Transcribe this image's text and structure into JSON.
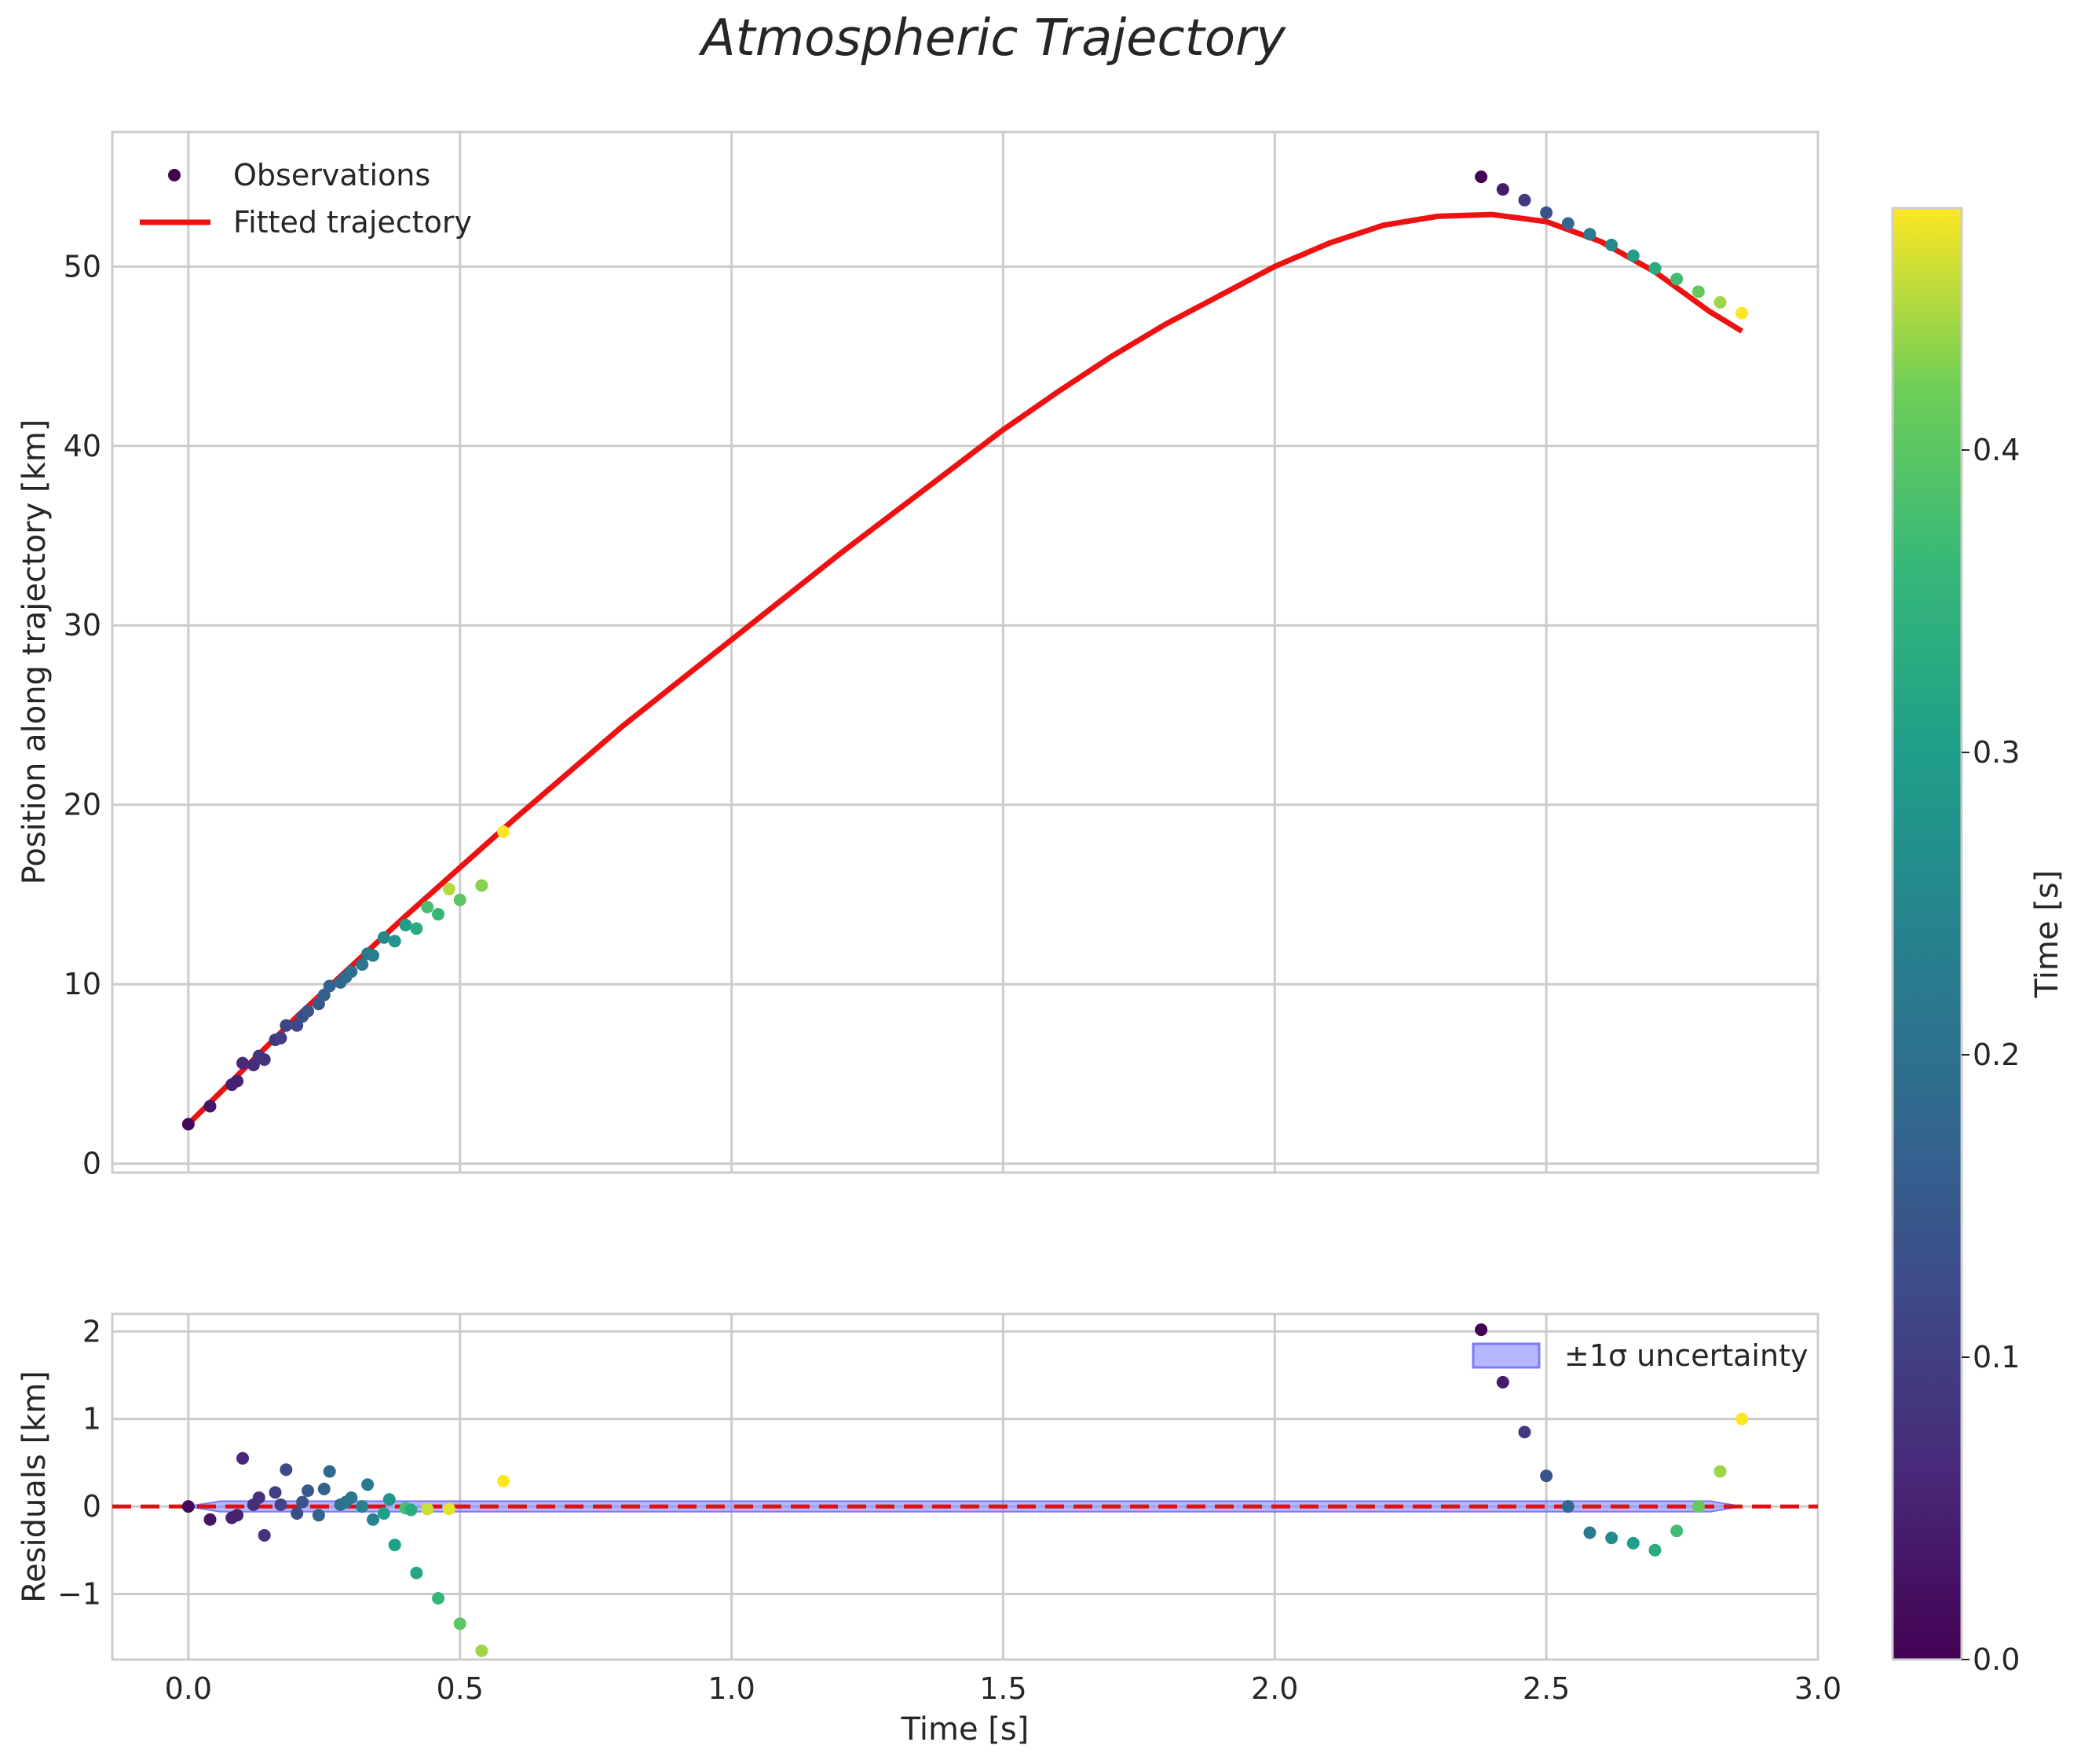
{
  "chart_data": {
    "type": "scatter",
    "title": "Atmospheric Trajectory",
    "top_panel": {
      "ylabel": "Position along trajectory [km]",
      "xlim": [
        -0.14,
        3.0
      ],
      "ylim": [
        -0.5,
        57.5
      ],
      "xticks": [
        0.0,
        0.5,
        1.0,
        1.5,
        2.0,
        2.5,
        3.0
      ],
      "yticks": [
        0,
        10,
        20,
        30,
        40,
        50
      ],
      "grid": true,
      "legend_position": "top-left",
      "legend": [
        "Observations",
        "Fitted trajectory"
      ],
      "fit_color": "#ee1111",
      "fit_curve": {
        "x": [
          0.0,
          0.1,
          0.2,
          0.3,
          0.4,
          0.5,
          0.6,
          0.7,
          0.8,
          0.9,
          1.0,
          1.1,
          1.2,
          1.3,
          1.4,
          1.5,
          1.6,
          1.7,
          1.8,
          1.9,
          2.0,
          2.1,
          2.2,
          2.3,
          2.4,
          2.5,
          2.6,
          2.7,
          2.8,
          2.86
        ],
        "y": [
          2.2,
          5.2,
          8.2,
          11.0,
          13.8,
          16.5,
          19.2,
          21.8,
          24.4,
          26.8,
          29.2,
          31.6,
          34.0,
          36.3,
          38.6,
          40.9,
          43.0,
          45.0,
          46.8,
          48.4,
          50.0,
          51.3,
          52.3,
          52.8,
          52.9,
          52.5,
          51.4,
          49.7,
          47.5,
          46.4
        ]
      },
      "observations": [
        {
          "x": 0.0,
          "y": 2.2,
          "t": 0.01
        },
        {
          "x": 0.04,
          "y": 3.2,
          "t": 0.03
        },
        {
          "x": 0.08,
          "y": 4.4,
          "t": 0.05
        },
        {
          "x": 0.09,
          "y": 4.6,
          "t": 0.05
        },
        {
          "x": 0.1,
          "y": 5.6,
          "t": 0.06
        },
        {
          "x": 0.12,
          "y": 5.5,
          "t": 0.07
        },
        {
          "x": 0.13,
          "y": 6.0,
          "t": 0.08
        },
        {
          "x": 0.14,
          "y": 5.8,
          "t": 0.08
        },
        {
          "x": 0.16,
          "y": 6.9,
          "t": 0.09
        },
        {
          "x": 0.17,
          "y": 7.0,
          "t": 0.1
        },
        {
          "x": 0.18,
          "y": 7.7,
          "t": 0.11
        },
        {
          "x": 0.2,
          "y": 7.7,
          "t": 0.12
        },
        {
          "x": 0.21,
          "y": 8.2,
          "t": 0.13
        },
        {
          "x": 0.22,
          "y": 8.5,
          "t": 0.14
        },
        {
          "x": 0.24,
          "y": 8.9,
          "t": 0.15
        },
        {
          "x": 0.25,
          "y": 9.4,
          "t": 0.16
        },
        {
          "x": 0.26,
          "y": 9.9,
          "t": 0.17
        },
        {
          "x": 0.28,
          "y": 10.1,
          "t": 0.18
        },
        {
          "x": 0.29,
          "y": 10.4,
          "t": 0.19
        },
        {
          "x": 0.3,
          "y": 10.7,
          "t": 0.2
        },
        {
          "x": 0.32,
          "y": 11.1,
          "t": 0.21
        },
        {
          "x": 0.33,
          "y": 11.7,
          "t": 0.22
        },
        {
          "x": 0.34,
          "y": 11.6,
          "t": 0.23
        },
        {
          "x": 0.36,
          "y": 12.6,
          "t": 0.25
        },
        {
          "x": 0.38,
          "y": 12.4,
          "t": 0.28
        },
        {
          "x": 0.4,
          "y": 13.3,
          "t": 0.3
        },
        {
          "x": 0.42,
          "y": 13.1,
          "t": 0.33
        },
        {
          "x": 0.44,
          "y": 14.3,
          "t": 0.38
        },
        {
          "x": 0.46,
          "y": 13.9,
          "t": 0.36
        },
        {
          "x": 0.48,
          "y": 15.3,
          "t": 0.45
        },
        {
          "x": 0.5,
          "y": 14.7,
          "t": 0.4
        },
        {
          "x": 0.54,
          "y": 15.5,
          "t": 0.43
        },
        {
          "x": 0.58,
          "y": 18.5,
          "t": 0.48
        },
        {
          "x": 2.38,
          "y": 55.0,
          "t": 0.0
        },
        {
          "x": 2.42,
          "y": 54.3,
          "t": 0.04
        },
        {
          "x": 2.46,
          "y": 53.7,
          "t": 0.09
        },
        {
          "x": 2.5,
          "y": 53.0,
          "t": 0.14
        },
        {
          "x": 2.54,
          "y": 52.4,
          "t": 0.18
        },
        {
          "x": 2.58,
          "y": 51.8,
          "t": 0.22
        },
        {
          "x": 2.62,
          "y": 51.2,
          "t": 0.26
        },
        {
          "x": 2.66,
          "y": 50.6,
          "t": 0.3
        },
        {
          "x": 2.7,
          "y": 49.9,
          "t": 0.33
        },
        {
          "x": 2.74,
          "y": 49.3,
          "t": 0.37
        },
        {
          "x": 2.78,
          "y": 48.6,
          "t": 0.41
        },
        {
          "x": 2.82,
          "y": 48.0,
          "t": 0.44
        },
        {
          "x": 2.86,
          "y": 47.4,
          "t": 0.48
        }
      ]
    },
    "bottom_panel": {
      "xlabel": "Time [s]",
      "ylabel": "Residuals [km]",
      "xlim": [
        -0.14,
        3.0
      ],
      "ylim": [
        -1.75,
        2.2
      ],
      "xticks": [
        0.0,
        0.5,
        1.0,
        1.5,
        2.0,
        2.5,
        3.0
      ],
      "xtick_labels": [
        "0.0",
        "0.5",
        "1.0",
        "1.5",
        "2.0",
        "2.5",
        "3.0"
      ],
      "yticks": [
        -1,
        0,
        1,
        2
      ],
      "ytick_labels": [
        "−1",
        "0",
        "1",
        "2"
      ],
      "grid": true,
      "legend_position": "top-right",
      "legend": [
        "±1σ uncertainty"
      ],
      "band_color": "#7b7bff",
      "zero_line_color": "#dd1111",
      "uncertainty_band": {
        "x0": 0.0,
        "x1": 2.86,
        "half_width": 0.06
      },
      "residuals": [
        {
          "x": 0.0,
          "y": 0.0,
          "t": 0.01
        },
        {
          "x": 0.04,
          "y": -0.15,
          "t": 0.03
        },
        {
          "x": 0.08,
          "y": -0.13,
          "t": 0.05
        },
        {
          "x": 0.09,
          "y": -0.1,
          "t": 0.05
        },
        {
          "x": 0.1,
          "y": 0.55,
          "t": 0.06
        },
        {
          "x": 0.12,
          "y": 0.02,
          "t": 0.07
        },
        {
          "x": 0.13,
          "y": 0.1,
          "t": 0.08
        },
        {
          "x": 0.14,
          "y": -0.33,
          "t": 0.08
        },
        {
          "x": 0.16,
          "y": 0.16,
          "t": 0.1
        },
        {
          "x": 0.17,
          "y": 0.02,
          "t": 0.11
        },
        {
          "x": 0.18,
          "y": 0.42,
          "t": 0.12
        },
        {
          "x": 0.2,
          "y": -0.08,
          "t": 0.13
        },
        {
          "x": 0.21,
          "y": 0.05,
          "t": 0.14
        },
        {
          "x": 0.22,
          "y": 0.18,
          "t": 0.15
        },
        {
          "x": 0.24,
          "y": -0.1,
          "t": 0.17
        },
        {
          "x": 0.25,
          "y": 0.2,
          "t": 0.17
        },
        {
          "x": 0.26,
          "y": 0.4,
          "t": 0.18
        },
        {
          "x": 0.28,
          "y": 0.02,
          "t": 0.2
        },
        {
          "x": 0.29,
          "y": 0.05,
          "t": 0.21
        },
        {
          "x": 0.3,
          "y": 0.1,
          "t": 0.22
        },
        {
          "x": 0.32,
          "y": 0.0,
          "t": 0.24
        },
        {
          "x": 0.33,
          "y": 0.25,
          "t": 0.22
        },
        {
          "x": 0.34,
          "y": -0.15,
          "t": 0.24
        },
        {
          "x": 0.36,
          "y": -0.08,
          "t": 0.3
        },
        {
          "x": 0.37,
          "y": 0.08,
          "t": 0.28
        },
        {
          "x": 0.38,
          "y": -0.44,
          "t": 0.3
        },
        {
          "x": 0.4,
          "y": -0.02,
          "t": 0.38
        },
        {
          "x": 0.41,
          "y": -0.04,
          "t": 0.33
        },
        {
          "x": 0.42,
          "y": -0.76,
          "t": 0.32
        },
        {
          "x": 0.44,
          "y": -0.03,
          "t": 0.46
        },
        {
          "x": 0.46,
          "y": -1.05,
          "t": 0.36
        },
        {
          "x": 0.48,
          "y": -0.03,
          "t": 0.47
        },
        {
          "x": 0.5,
          "y": -1.34,
          "t": 0.4
        },
        {
          "x": 0.54,
          "y": -1.65,
          "t": 0.44
        },
        {
          "x": 0.58,
          "y": 0.29,
          "t": 0.48
        },
        {
          "x": 2.38,
          "y": 2.02,
          "t": 0.0
        },
        {
          "x": 2.42,
          "y": 1.42,
          "t": 0.04
        },
        {
          "x": 2.46,
          "y": 0.85,
          "t": 0.09
        },
        {
          "x": 2.5,
          "y": 0.35,
          "t": 0.14
        },
        {
          "x": 2.54,
          "y": 0.0,
          "t": 0.18
        },
        {
          "x": 2.58,
          "y": -0.3,
          "t": 0.22
        },
        {
          "x": 2.62,
          "y": -0.36,
          "t": 0.26
        },
        {
          "x": 2.66,
          "y": -0.42,
          "t": 0.3
        },
        {
          "x": 2.7,
          "y": -0.5,
          "t": 0.33
        },
        {
          "x": 2.74,
          "y": -0.28,
          "t": 0.37
        },
        {
          "x": 2.78,
          "y": 0.0,
          "t": 0.41
        },
        {
          "x": 2.82,
          "y": 0.4,
          "t": 0.44
        },
        {
          "x": 2.86,
          "y": 1.0,
          "t": 0.48
        }
      ]
    },
    "colorbar": {
      "label": "Time [s]",
      "colormap": "viridis",
      "range": [
        0.0,
        0.48
      ],
      "ticks": [
        0.0,
        0.1,
        0.2,
        0.3,
        0.4
      ],
      "tick_labels": [
        "0.0",
        "0.1",
        "0.2",
        "0.3",
        "0.4"
      ]
    }
  }
}
